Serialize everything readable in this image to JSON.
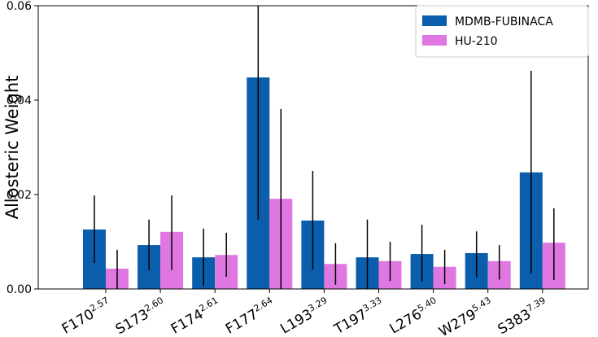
{
  "chart_data": {
    "type": "bar",
    "y_label": "Allosteric Weight",
    "categories": [
      "F170",
      "S173",
      "F174",
      "F177",
      "L193",
      "T197",
      "L276",
      "W279",
      "S383"
    ],
    "category_superscripts": [
      "2.57",
      "2.60",
      "2.61",
      "2.64",
      "3.29",
      "3.33",
      "5.40",
      "5.43",
      "7.39"
    ],
    "series": [
      {
        "name": "MDMB-FUBINACA",
        "color": "#0a5eab",
        "values": [
          0.0126,
          0.0093,
          0.0067,
          0.0448,
          0.0145,
          0.0067,
          0.0074,
          0.0076,
          0.0247
        ],
        "lower": [
          0.0055,
          0.004,
          0.0007,
          0.0147,
          0.0041,
          0.0,
          0.0016,
          0.0024,
          0.0033
        ],
        "upper": [
          0.0198,
          0.0147,
          0.0128,
          0.06,
          0.025,
          0.0147,
          0.0136,
          0.0122,
          0.0462
        ]
      },
      {
        "name": "HU-210",
        "color": "#df77e0",
        "values": [
          0.0043,
          0.0121,
          0.0072,
          0.0191,
          0.0053,
          0.0059,
          0.0047,
          0.0059,
          0.0098
        ],
        "lower": [
          0.0,
          0.004,
          0.0026,
          0.0,
          0.0009,
          0.0017,
          0.001,
          0.002,
          0.0019
        ],
        "upper": [
          0.0083,
          0.0198,
          0.0119,
          0.0381,
          0.0097,
          0.01,
          0.0083,
          0.0093,
          0.0171
        ]
      }
    ],
    "ylim": [
      0,
      0.06
    ],
    "yticks": [
      {
        "value": 0,
        "label": "0.00"
      },
      {
        "value": 0.02,
        "label": "0.02"
      },
      {
        "value": 0.04,
        "label": "0.04"
      },
      {
        "value": 0.06,
        "label": "0.06"
      }
    ],
    "legend": "upper right"
  }
}
